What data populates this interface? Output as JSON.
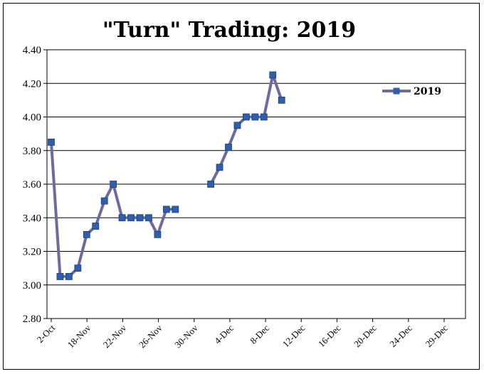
{
  "chart_data": {
    "type": "line",
    "title": "\"Turn\" Trading: 2019",
    "xlabel": "",
    "ylabel": "",
    "ylim": [
      2.8,
      4.4
    ],
    "yticks": [
      "2.80",
      "3.00",
      "3.20",
      "3.40",
      "3.60",
      "3.80",
      "4.00",
      "4.20",
      "4.40"
    ],
    "xticks": [
      "2-Oct",
      "18-Nov",
      "22-Nov",
      "26-Nov",
      "30-Nov",
      "4-Dec",
      "8-Dec",
      "12-Dec",
      "16-Dec",
      "20-Dec",
      "24-Dec",
      "29-Dec"
    ],
    "grid": "horizontal",
    "legend_position": "right",
    "series": [
      {
        "name": "2019",
        "color": "#6b6b9e",
        "marker_color": "#2e5faa",
        "points": [
          {
            "i": 0,
            "y": 3.85
          },
          {
            "i": 1,
            "y": 3.05
          },
          {
            "i": 2,
            "y": 3.05
          },
          {
            "i": 3,
            "y": 3.1
          },
          {
            "i": 4,
            "y": 3.3
          },
          {
            "i": 5,
            "y": 3.35
          },
          {
            "i": 6,
            "y": 3.5
          },
          {
            "i": 7,
            "y": 3.6
          },
          {
            "i": 8,
            "y": 3.4
          },
          {
            "i": 9,
            "y": 3.4
          },
          {
            "i": 10,
            "y": 3.4
          },
          {
            "i": 11,
            "y": 3.4
          },
          {
            "i": 12,
            "y": 3.3
          },
          {
            "i": 13,
            "y": 3.45
          },
          {
            "i": 14,
            "y": 3.45
          },
          {
            "i": 18,
            "y": 3.6
          },
          {
            "i": 19,
            "y": 3.7
          },
          {
            "i": 20,
            "y": 3.82
          },
          {
            "i": 21,
            "y": 3.95
          },
          {
            "i": 22,
            "y": 4.0
          },
          {
            "i": 23,
            "y": 4.0
          },
          {
            "i": 24,
            "y": 4.0
          },
          {
            "i": 25,
            "y": 4.25
          },
          {
            "i": 26,
            "y": 4.1
          }
        ]
      }
    ]
  }
}
